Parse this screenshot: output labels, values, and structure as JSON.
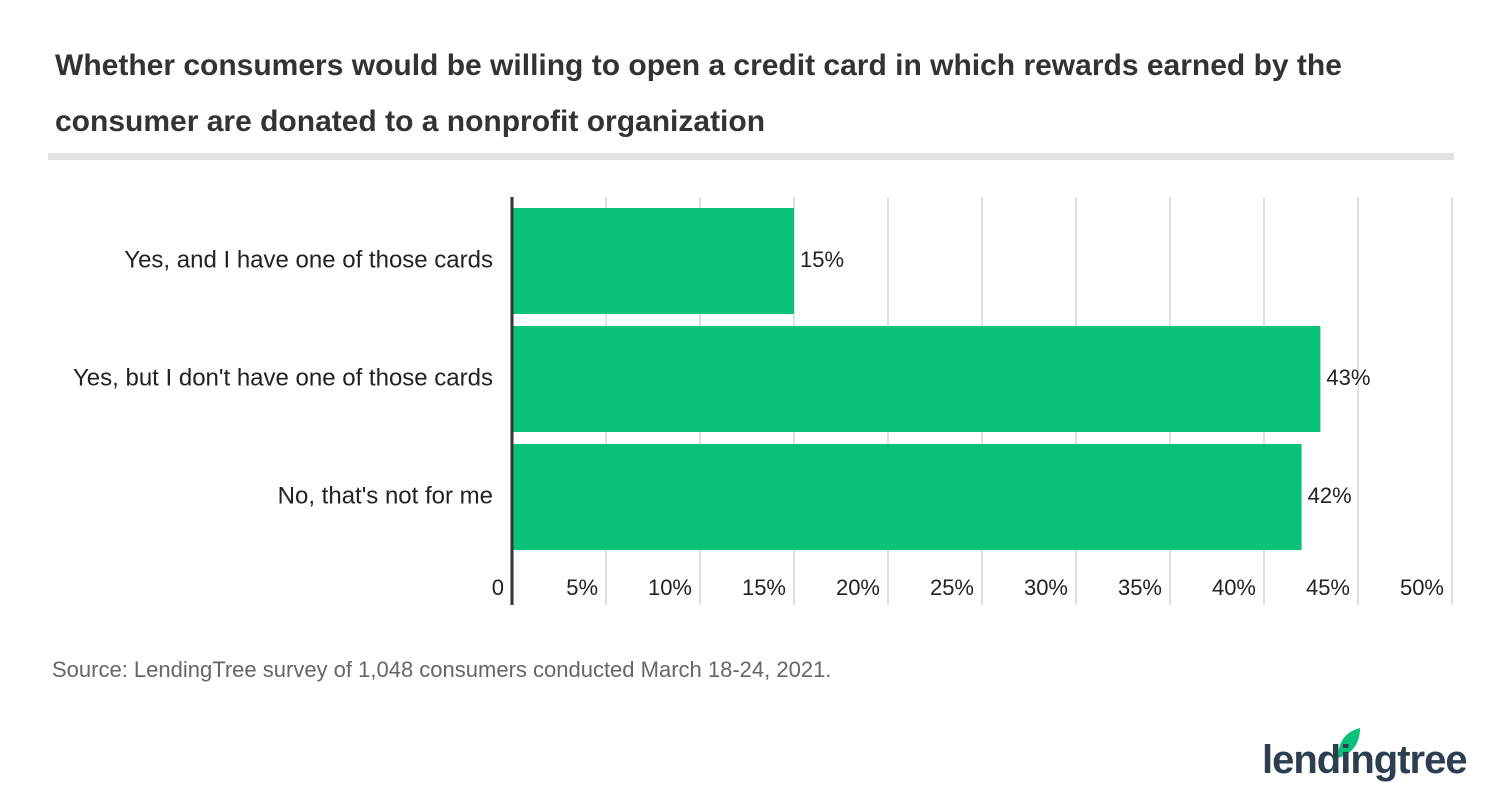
{
  "chart_data": {
    "type": "hbar",
    "title": "Whether consumers would be willing to open a credit card in which rewards earned by the consumer are donated to a nonprofit organization",
    "categories": [
      "Yes, and I have one of those cards",
      "Yes, but I don't have one of those cards",
      "No, that's not for me"
    ],
    "values": [
      15,
      43,
      42
    ],
    "value_labels": [
      "15%",
      "43%",
      "42%"
    ],
    "color": "#0bc27a",
    "xlim": [
      0,
      50
    ],
    "xticks": [
      0,
      {
        "value": 5,
        "label": "5%"
      },
      {
        "value": 10,
        "label": "10%"
      },
      {
        "value": 15,
        "label": "15%"
      },
      {
        "value": 20,
        "label": "20%"
      },
      {
        "value": 25,
        "label": "25%"
      },
      {
        "value": 30,
        "label": "30%"
      },
      {
        "value": 35,
        "label": "35%"
      },
      {
        "value": 40,
        "label": "40%"
      },
      {
        "value": 45,
        "label": "45%"
      },
      {
        "value": 50,
        "label": "50%"
      }
    ],
    "grid": true,
    "source": "Source: LendingTree survey of 1,048 consumers conducted March 18-24, 2021.",
    "logo": "lendingtree"
  }
}
